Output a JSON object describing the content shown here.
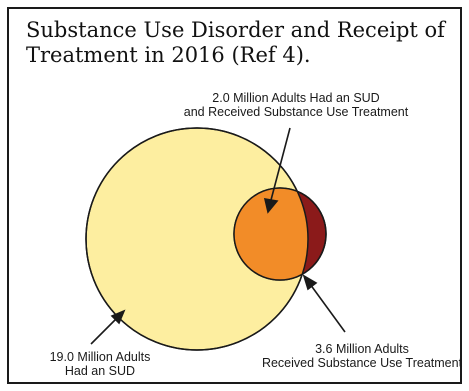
{
  "title": {
    "line1": "Substance Use Disorder and Receipt of",
    "line2": "Treatment in 2016 (Ref 4)."
  },
  "labels": {
    "overlap": {
      "line1": "2.0 Million Adults Had an SUD",
      "line2": "and Received Substance Use Treatment"
    },
    "sud": {
      "line1": "19.0 Million Adults",
      "line2": "Had an SUD"
    },
    "treatment": {
      "line1": "3.6 Million Adults",
      "line2": "Received Substance Use Treatment"
    }
  },
  "colors": {
    "sud_circle": "#fdeea0",
    "treatment_circle": "#8b1a1a",
    "overlap": "#f28c28",
    "outline": "#1a1a1a",
    "frame": "#1a1a1a"
  }
}
